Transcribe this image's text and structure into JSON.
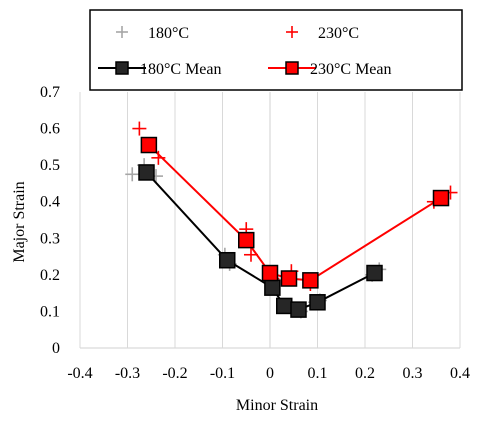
{
  "chart_data": {
    "type": "scatter",
    "title": "",
    "xlabel": "Minor Strain",
    "ylabel": "Major Strain",
    "xlim": [
      -0.4,
      0.4
    ],
    "ylim": [
      0,
      0.7
    ],
    "x_ticks": [
      "-0.4",
      "-0.3",
      "-0.2",
      "-0.1",
      "0",
      "0.1",
      "0.2",
      "0.3",
      "0.4"
    ],
    "y_ticks": [
      "0",
      "0.1",
      "0.2",
      "0.3",
      "0.4",
      "0.5",
      "0.6",
      "0.7"
    ],
    "grid": "vertical gridlines",
    "legend_position": "top",
    "series": [
      {
        "name": "180°C",
        "kind": "points",
        "marker": "plus",
        "color": "#a6a6a6",
        "points": [
          [
            -0.29,
            0.475
          ],
          [
            -0.265,
            0.5
          ],
          [
            -0.24,
            0.47
          ],
          [
            -0.095,
            0.255
          ],
          [
            -0.085,
            0.23
          ],
          [
            0.005,
            0.165
          ],
          [
            0.03,
            0.115
          ],
          [
            0.045,
            0.11
          ],
          [
            0.065,
            0.1
          ],
          [
            0.095,
            0.125
          ],
          [
            0.105,
            0.13
          ],
          [
            0.215,
            0.2
          ],
          [
            0.23,
            0.215
          ]
        ]
      },
      {
        "name": "230°C",
        "kind": "points",
        "marker": "plus",
        "color": "#ff0000",
        "points": [
          [
            -0.275,
            0.6
          ],
          [
            -0.235,
            0.52
          ],
          [
            -0.05,
            0.325
          ],
          [
            -0.04,
            0.255
          ],
          [
            0.005,
            0.19
          ],
          [
            0.045,
            0.21
          ],
          [
            0.085,
            0.175
          ],
          [
            0.345,
            0.4
          ],
          [
            0.38,
            0.425
          ]
        ]
      },
      {
        "name": "180°C Mean",
        "kind": "line",
        "marker": "square",
        "color": "#000000",
        "fill": "#262626",
        "points": [
          [
            -0.26,
            0.48
          ],
          [
            -0.09,
            0.24
          ],
          [
            0.005,
            0.165
          ],
          [
            0.03,
            0.115
          ],
          [
            0.06,
            0.105
          ],
          [
            0.1,
            0.125
          ],
          [
            0.22,
            0.205
          ]
        ]
      },
      {
        "name": "230°C Mean",
        "kind": "line",
        "marker": "square",
        "color": "#ff0000",
        "fill": "#ff0000",
        "points": [
          [
            -0.255,
            0.555
          ],
          [
            -0.05,
            0.295
          ],
          [
            0.0,
            0.205
          ],
          [
            0.04,
            0.19
          ],
          [
            0.085,
            0.185
          ],
          [
            0.36,
            0.41
          ]
        ]
      }
    ]
  }
}
